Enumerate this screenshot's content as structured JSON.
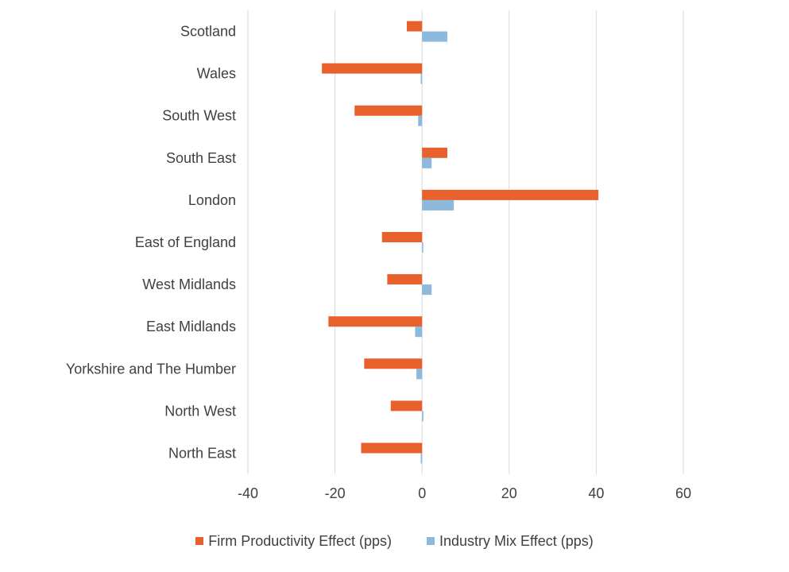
{
  "chart_data": {
    "type": "bar",
    "orientation": "horizontal",
    "categories": [
      "Scotland",
      "Wales",
      "South West",
      "South East",
      "London",
      "East of England",
      "West Midlands",
      "East Midlands",
      "Yorkshire and The Humber",
      "North West",
      "North East"
    ],
    "series": [
      {
        "name": "Firm Productivity Effect (pps)",
        "color": "#E8612C",
        "values": [
          -3.5,
          -23.0,
          -15.5,
          5.8,
          40.5,
          -9.2,
          -8.0,
          -21.5,
          -13.3,
          -7.2,
          -14.0
        ]
      },
      {
        "name": "Industry Mix Effect (pps)",
        "color": "#8DB9DC",
        "values": [
          5.8,
          -0.3,
          -0.9,
          2.2,
          7.3,
          0.2,
          2.2,
          -1.6,
          -1.3,
          0.3,
          -0.3
        ]
      }
    ],
    "xlim": [
      -40,
      60
    ],
    "xticks": [
      "-40",
      "-20",
      "0",
      "20",
      "40",
      "60"
    ],
    "grid": "vertical",
    "legend_position": "bottom"
  }
}
